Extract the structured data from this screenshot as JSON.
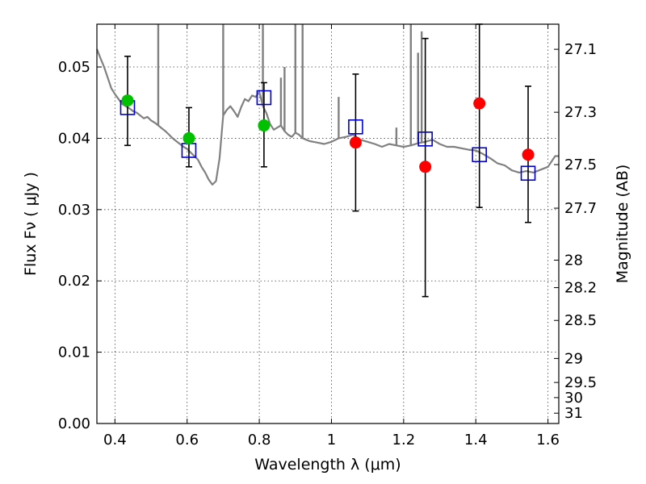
{
  "chart_data": {
    "type": "scatter",
    "xlabel": "Wavelength  λ (μm)",
    "ylabel_left": "Flux  Fν  ( μJy )",
    "ylabel_right": "Magnitude (AB)",
    "xlim": [
      0.35,
      1.63
    ],
    "ylim": [
      0.0,
      0.056
    ],
    "x_ticks": [
      0.4,
      0.6,
      0.8,
      1.0,
      1.2,
      1.4,
      1.6
    ],
    "x_tick_labels": [
      "0.4",
      "0.6",
      "0.8",
      "1",
      "1.2",
      "1.4",
      "1.6"
    ],
    "y_ticks": [
      0.0,
      0.01,
      0.02,
      0.03,
      0.04,
      0.05
    ],
    "y_tick_labels": [
      "0.00",
      "0.01",
      "0.02",
      "0.03",
      "0.04",
      "0.05"
    ],
    "right_ticks": [
      {
        "label": "27.1",
        "value": 27.1
      },
      {
        "label": "27.3",
        "value": 27.3
      },
      {
        "label": "27.5",
        "value": 27.5
      },
      {
        "label": "27.7",
        "value": 27.7
      },
      {
        "label": "28",
        "value": 28.0
      },
      {
        "label": "28.2",
        "value": 28.2
      },
      {
        "label": "28.5",
        "value": 28.5
      },
      {
        "label": "29",
        "value": 29.0
      },
      {
        "label": "29.5",
        "value": 29.5
      },
      {
        "label": "30",
        "value": 30.0
      },
      {
        "label": "31",
        "value": 31.0
      }
    ],
    "grid": true,
    "colors": {
      "spectrum": "#808080",
      "detection": "#00c000",
      "hst": "#ff0000",
      "model_band": "#0000cc",
      "errorbar": "#000000"
    },
    "spectrum": {
      "x": [
        0.35,
        0.36,
        0.37,
        0.38,
        0.39,
        0.4,
        0.41,
        0.42,
        0.43,
        0.44,
        0.45,
        0.46,
        0.47,
        0.48,
        0.49,
        0.5,
        0.51,
        0.52,
        0.53,
        0.54,
        0.55,
        0.56,
        0.57,
        0.58,
        0.59,
        0.6,
        0.61,
        0.62,
        0.63,
        0.64,
        0.65,
        0.66,
        0.67,
        0.68,
        0.69,
        0.7,
        0.71,
        0.72,
        0.73,
        0.74,
        0.75,
        0.76,
        0.77,
        0.78,
        0.79,
        0.8,
        0.81,
        0.82,
        0.83,
        0.84,
        0.85,
        0.86,
        0.87,
        0.88,
        0.89,
        0.9,
        0.91,
        0.92,
        0.93,
        0.94,
        0.95,
        0.96,
        0.98,
        1.0,
        1.02,
        1.04,
        1.06,
        1.08,
        1.1,
        1.12,
        1.14,
        1.16,
        1.18,
        1.2,
        1.22,
        1.24,
        1.26,
        1.28,
        1.3,
        1.32,
        1.34,
        1.36,
        1.38,
        1.4,
        1.42,
        1.44,
        1.46,
        1.48,
        1.5,
        1.52,
        1.54,
        1.56,
        1.58,
        1.6,
        1.62,
        1.63
      ],
      "y": [
        0.0525,
        0.0512,
        0.05,
        0.0485,
        0.047,
        0.0462,
        0.0455,
        0.0448,
        0.0445,
        0.0442,
        0.0438,
        0.0436,
        0.0432,
        0.0428,
        0.043,
        0.0425,
        0.0422,
        0.0418,
        0.0414,
        0.041,
        0.0405,
        0.04,
        0.0396,
        0.0392,
        0.0388,
        0.0385,
        0.038,
        0.0375,
        0.037,
        0.036,
        0.0352,
        0.0342,
        0.0335,
        0.034,
        0.0372,
        0.0432,
        0.044,
        0.0445,
        0.0438,
        0.043,
        0.0444,
        0.0455,
        0.0452,
        0.046,
        0.0458,
        0.0465,
        0.0445,
        0.0435,
        0.042,
        0.0412,
        0.0415,
        0.0418,
        0.041,
        0.0405,
        0.0402,
        0.0408,
        0.0405,
        0.04,
        0.0398,
        0.0396,
        0.0395,
        0.0394,
        0.0392,
        0.0395,
        0.04,
        0.0402,
        0.0405,
        0.0398,
        0.0395,
        0.0392,
        0.0388,
        0.0392,
        0.039,
        0.0388,
        0.039,
        0.0393,
        0.0395,
        0.0398,
        0.0392,
        0.0388,
        0.0388,
        0.0386,
        0.0384,
        0.0383,
        0.0378,
        0.0372,
        0.0365,
        0.0362,
        0.0355,
        0.0352,
        0.0354,
        0.0352,
        0.0356,
        0.036,
        0.0375,
        0.0375
      ],
      "spikes": [
        {
          "x": 0.52,
          "y": 0.056
        },
        {
          "x": 0.7,
          "y": 0.056
        },
        {
          "x": 0.81,
          "y": 0.056
        },
        {
          "x": 0.86,
          "y": 0.0485
        },
        {
          "x": 0.87,
          "y": 0.05
        },
        {
          "x": 0.9,
          "y": 0.056
        },
        {
          "x": 0.92,
          "y": 0.056
        },
        {
          "x": 1.02,
          "y": 0.0458
        },
        {
          "x": 1.18,
          "y": 0.0415
        },
        {
          "x": 1.22,
          "y": 0.056
        },
        {
          "x": 1.24,
          "y": 0.052
        },
        {
          "x": 1.25,
          "y": 0.055
        }
      ]
    },
    "series": [
      {
        "kind": "error_bars",
        "points": [
          {
            "x": 0.435,
            "low": 0.039,
            "high": 0.0515
          },
          {
            "x": 0.605,
            "low": 0.036,
            "high": 0.0443
          },
          {
            "x": 0.813,
            "low": 0.036,
            "high": 0.0478
          },
          {
            "x": 1.067,
            "low": 0.0298,
            "high": 0.049
          },
          {
            "x": 1.26,
            "low": 0.0178,
            "high": 0.054
          },
          {
            "x": 1.41,
            "low": 0.0303,
            "high": 0.056
          },
          {
            "x": 1.545,
            "low": 0.0282,
            "high": 0.0473
          }
        ]
      },
      {
        "kind": "green_circles",
        "x": [
          0.435,
          0.605,
          0.813
        ],
        "y": [
          0.0453,
          0.04,
          0.0418
        ]
      },
      {
        "kind": "red_circles",
        "x": [
          1.067,
          1.26,
          1.41,
          1.545
        ],
        "y": [
          0.0394,
          0.036,
          0.0449,
          0.0377
        ]
      },
      {
        "kind": "blue_squares",
        "x": [
          0.435,
          0.605,
          0.813,
          1.067,
          1.26,
          1.41,
          1.545
        ],
        "y": [
          0.0443,
          0.0383,
          0.0457,
          0.0416,
          0.0399,
          0.0377,
          0.0351
        ]
      }
    ]
  }
}
